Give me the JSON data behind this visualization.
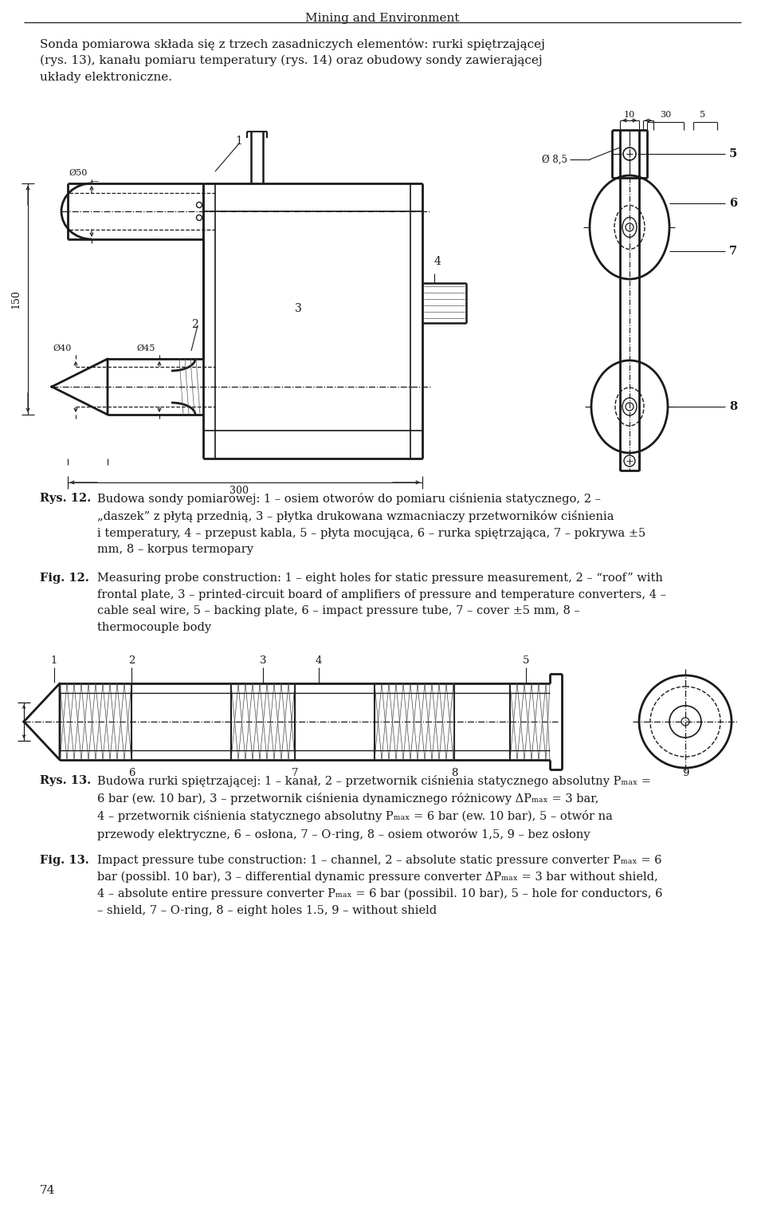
{
  "header_text": "Mining and Environment",
  "page_number": "74",
  "bg_color": "#ffffff",
  "text_color": "#1a1a1a",
  "intro_lines": [
    "Sonda pomiarowa składa się z trzech zasadniczych elementów: rurki spiętrzającej",
    "(rys. 13), kanału pomiaru temperatury (rys. 14) oraz obudowy sondy zawierającej",
    "układy elektroniczne."
  ],
  "rys12_label": "Rys. 12.",
  "rys12_text": "Budowa sondy pomiarowej: 1 – osiem otworów do pomiaru ciśnienia statycznego, 2 –\n„daszek” z płytą przednią, 3 – płytka drukowana wzmacniaczy przetworników ciśnienia\ni temperatury, 4 – przepust kabla, 5 – płyta mocująca, 6 – rurka spiętrzająca, 7 – pokrywa ±5\nmm, 8 – korpus termopary",
  "fig12_label": "Fig. 12.",
  "fig12_text": "Measuring probe construction: 1 – eight holes for static pressure measurement, 2 – “roof” with\nfrontal plate, 3 – printed-circuit board of amplifiers of pressure and temperature converters, 4 –\ncable seal wire, 5 – backing plate, 6 – impact pressure tube, 7 – cover ±5 mm, 8 –\nthermocouple body",
  "rys13_label": "Rys. 13.",
  "rys13_text": "Budowa rurki spiętrzającej: 1 – kanał, 2 – przetwornik ciśnienia statycznego absolutny Pₘₐₓ =\n6 bar (ew. 10 bar), 3 – przetwornik ciśnienia dynamicznego różnicowy ΔPₘₐₓ = 3 bar,\n4 – przetwornik ciśnienia statycznego absolutny Pₘₐₓ = 6 bar (ew. 10 bar), 5 – otwór na\nprzewody elektryczne, 6 – osłona, 7 – O-ring, 8 – osiem otworów 1,5, 9 – bez osłony",
  "fig13_label": "Fig. 13.",
  "fig13_text": "Impact pressure tube construction: 1 – channel, 2 – absolute static pressure converter Pₘₐₓ = 6\nbar (possibl. 10 bar), 3 – differential dynamic pressure converter ΔPₘₐₓ = 3 bar without shield,\n4 – absolute entire pressure converter Pₘₐₓ = 6 bar (possibil. 10 bar), 5 – hole for conductors, 6\n– shield, 7 – O-ring, 8 – eight holes 1.5, 9 – without shield"
}
